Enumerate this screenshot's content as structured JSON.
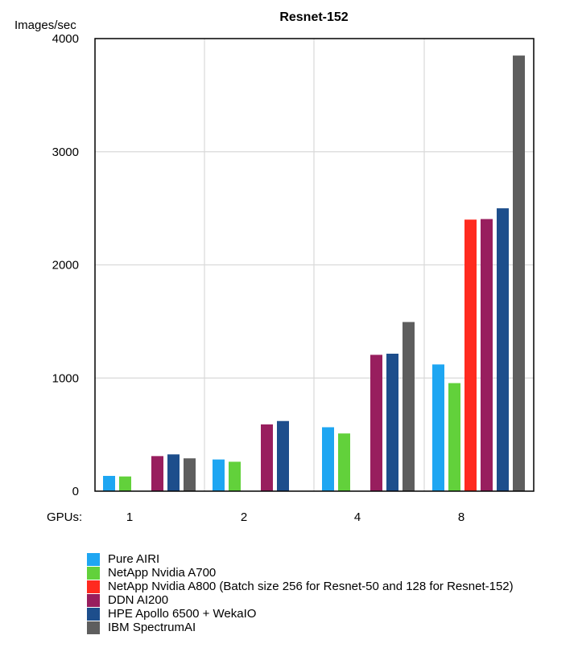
{
  "chart_data": {
    "type": "bar",
    "title": "Resnet-152",
    "ylabel": "Images/sec",
    "xlabel": "GPUs:",
    "categories": [
      "1",
      "2",
      "4",
      "8"
    ],
    "ylim": [
      0,
      4000
    ],
    "yticks": [
      0,
      1000,
      2000,
      3000,
      4000
    ],
    "grid": true,
    "legend_position": "bottom",
    "series": [
      {
        "name": "Pure AIRI",
        "color": "#1EA6F2",
        "values": [
          135,
          280,
          565,
          1120
        ]
      },
      {
        "name": "NetApp Nvidia A700",
        "color": "#62D13B",
        "values": [
          130,
          260,
          510,
          955
        ]
      },
      {
        "name": "NetApp Nvidia A800 (Batch size 256 for Resnet-50 and 128 for Resnet-152)",
        "color": "#FF2A1F",
        "values": [
          null,
          null,
          null,
          2400
        ]
      },
      {
        "name": "DDN AI200",
        "color": "#981E5E",
        "values": [
          310,
          590,
          1205,
          2405
        ]
      },
      {
        "name": "HPE Apollo 6500 + WekaIO",
        "color": "#1D4E8C",
        "values": [
          325,
          620,
          1215,
          2500
        ]
      },
      {
        "name": "IBM SpectrumAI",
        "color": "#5E5E5E",
        "values": [
          290,
          null,
          1495,
          3850
        ]
      }
    ]
  }
}
